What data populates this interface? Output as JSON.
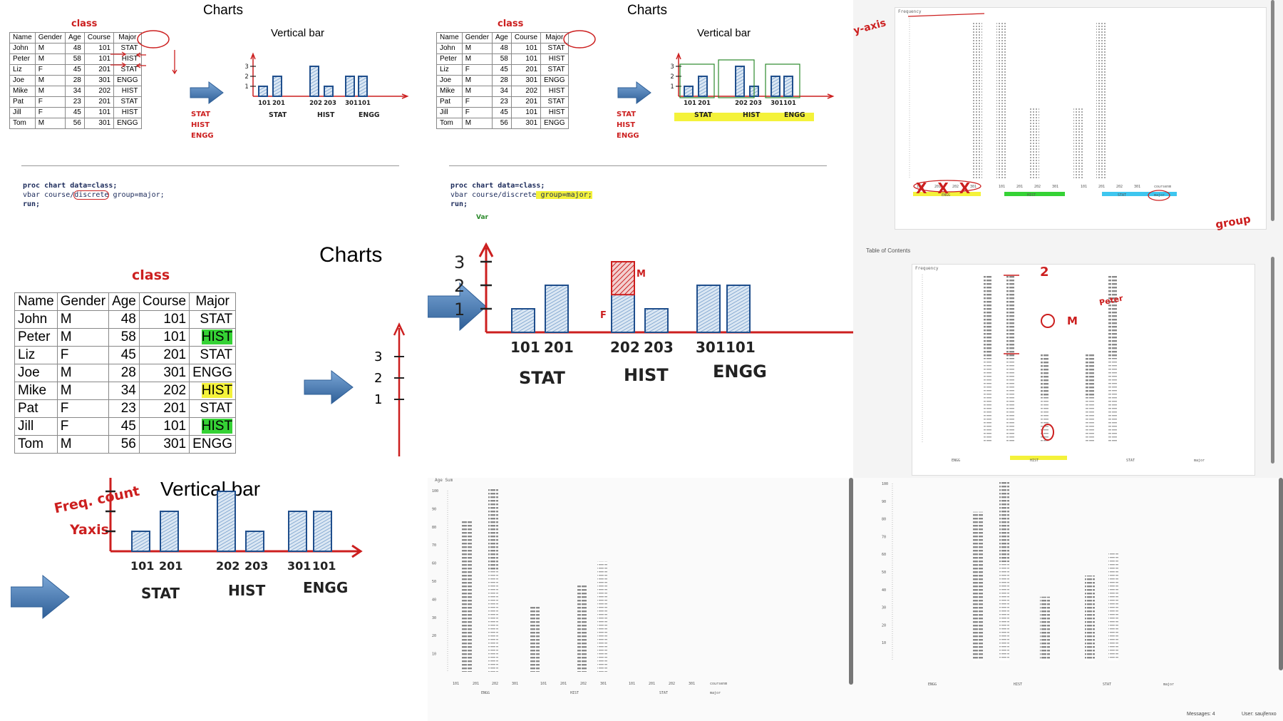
{
  "colors": {
    "bar_stroke": "#1f4e8c",
    "axis_red": "#cc1f1f",
    "highlight_yellow": "#f4f23a",
    "highlight_green": "#35d235",
    "highlight_cyan": "#3ec6ef"
  },
  "slide": {
    "title": "Charts",
    "table_label": "class",
    "chart_label": "Vertical bar",
    "columns": [
      "Name",
      "Gender",
      "Age",
      "Course",
      "Major"
    ],
    "rows": [
      [
        "John",
        "M",
        "48",
        "101",
        "STAT"
      ],
      [
        "Peter",
        "M",
        "58",
        "101",
        "HIST"
      ],
      [
        "Liz",
        "F",
        "45",
        "201",
        "STAT"
      ],
      [
        "Joe",
        "M",
        "28",
        "301",
        "ENGG"
      ],
      [
        "Mike",
        "M",
        "34",
        "202",
        "HIST"
      ],
      [
        "Pat",
        "F",
        "23",
        "201",
        "STAT"
      ],
      [
        "Jill",
        "F",
        "45",
        "101",
        "HIST"
      ],
      [
        "Tom",
        "M",
        "56",
        "301",
        "ENGG"
      ]
    ],
    "y_ticks": [
      "3",
      "2",
      "1"
    ],
    "bars": [
      {
        "course": "101",
        "freq": 1
      },
      {
        "course": "201",
        "freq": 2
      },
      {
        "course": "202",
        "freq": 3
      },
      {
        "course": "203",
        "freq": 1
      },
      {
        "course": "301",
        "freq": 2
      },
      {
        "course": "101",
        "freq": 2
      }
    ],
    "x_labels": [
      "101",
      "201",
      "202",
      "203",
      "301",
      "101"
    ],
    "groups": [
      "STAT",
      "HIST",
      "ENGG"
    ],
    "margin_notes": [
      "STAT",
      "HIST",
      "ENGG"
    ],
    "code_line1": "proc chart data=class;",
    "code_line2a": "vbar course/",
    "code_line2b": "discrete",
    "code_line2c": " group=major;",
    "code_line3": "run;",
    "annot_var": "Var",
    "annot_freq": "Freq. count",
    "annot_yaxis": "Yaxis",
    "annot_F": "F",
    "annot_M": "M"
  },
  "sas1": {
    "label_y": "Frequency",
    "annot_yaxis": "y-axis",
    "annot_group": "group",
    "annot_x": "X X X",
    "courses": [
      "101",
      "201",
      "202",
      "301",
      "101",
      "201",
      "202",
      "301",
      "101",
      "201",
      "202",
      "301"
    ],
    "groups": [
      "ENGG",
      "HIST",
      "STAT"
    ],
    "course_label": "coursenm",
    "major_label": "major"
  },
  "sas2": {
    "toc": "Table of Contents",
    "label_y": "Frequency",
    "annot_2": "2",
    "annot_peter": "Peter",
    "annot_M": "M",
    "annot_0": "0",
    "groups": [
      "ENGG",
      "HIST",
      "STAT"
    ],
    "major_label": "major"
  },
  "sas3": {
    "label_y": "Age Sum",
    "y_ticks": [
      "100",
      "90",
      "80",
      "70",
      "60",
      "50",
      "40",
      "30",
      "20",
      "10"
    ],
    "courses": [
      "101",
      "201",
      "202",
      "301",
      "101",
      "201",
      "202",
      "301",
      "101",
      "201",
      "202",
      "301"
    ],
    "groups": [
      "ENGG",
      "HIST",
      "STAT"
    ],
    "course_label": "coursenm",
    "major_label": "major"
  },
  "sas4": {
    "y_ticks": [
      "100",
      "90",
      "80",
      "70",
      "60",
      "50",
      "40",
      "30",
      "20",
      "10"
    ],
    "groups": [
      "ENGG",
      "HIST",
      "STAT"
    ],
    "major_label": "major",
    "status_messages": "Messages: 4",
    "status_user": "User: saujfenxo"
  }
}
